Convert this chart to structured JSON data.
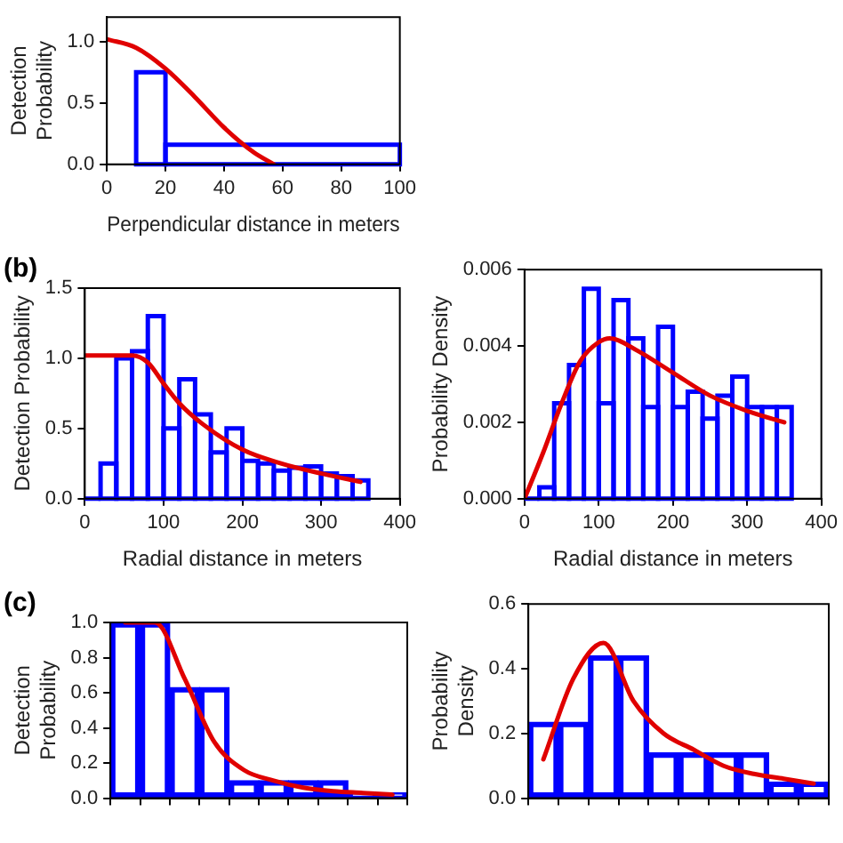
{
  "chart_data": [
    {
      "type": "histogram",
      "xlabel": "Perpendicular distance in meters",
      "ylabel": "Detection Probability",
      "bins": [
        10,
        20,
        100
      ],
      "values": [
        0.75,
        0.16
      ],
      "color": "#0000ff",
      "xlim": [
        0,
        100
      ],
      "xticks": [
        0,
        20,
        40,
        60,
        80,
        100
      ],
      "ylim": [
        0,
        1.2
      ],
      "yticks": [
        {
          "value": 0,
          "label": "0.0"
        },
        {
          "value": 0.5,
          "label": "0.5"
        },
        {
          "value": 1,
          "label": "1.0"
        }
      ],
      "grid": false,
      "series": [
        {
          "type": "line",
          "color": "#e00000",
          "x": [
            0,
            10,
            20,
            30,
            40,
            50,
            57
          ],
          "values": [
            1.02,
            0.95,
            0.78,
            0.55,
            0.3,
            0.1,
            0
          ]
        }
      ]
    },
    {
      "type": "histogram",
      "title": "(b)",
      "xlabel": "Radial distance in meters",
      "ylabel": "Detection Probability",
      "bins": [
        0,
        20,
        40,
        60,
        80,
        100,
        120,
        140,
        160,
        180,
        200,
        220,
        240,
        260,
        280,
        300,
        320,
        340,
        360
      ],
      "values": [
        0,
        0.25,
        1.0,
        1.05,
        1.3,
        0.5,
        0.85,
        0.6,
        0.33,
        0.5,
        0.27,
        0.25,
        0.2,
        0.22,
        0.23,
        0.18,
        0.16,
        0.13
      ],
      "color": "#0000ff",
      "xlim": [
        0,
        400
      ],
      "xticks": [
        0,
        100,
        200,
        300,
        400
      ],
      "ylim": [
        0,
        1.5
      ],
      "yticks": [
        {
          "value": 0,
          "label": "0.0"
        },
        {
          "value": 0.5,
          "label": "0.5"
        },
        {
          "value": 1,
          "label": "1.0"
        },
        {
          "value": 1.5,
          "label": "1.5"
        }
      ],
      "grid": false,
      "series": [
        {
          "type": "line",
          "color": "#e00000",
          "x": [
            0,
            60,
            80,
            100,
            120,
            150,
            200,
            250,
            300,
            350
          ],
          "values": [
            1.02,
            1.02,
            0.97,
            0.82,
            0.68,
            0.53,
            0.35,
            0.25,
            0.18,
            0.12
          ]
        }
      ]
    },
    {
      "type": "histogram",
      "xlabel": "Radial distance in meters",
      "ylabel": "Probability Density",
      "bins": [
        0,
        20,
        40,
        60,
        80,
        100,
        120,
        140,
        160,
        180,
        200,
        220,
        240,
        260,
        280,
        300,
        320,
        340,
        360
      ],
      "values": [
        0,
        0.0003,
        0.0025,
        0.0035,
        0.0055,
        0.0025,
        0.0052,
        0.0042,
        0.0024,
        0.0045,
        0.0024,
        0.0028,
        0.0021,
        0.0027,
        0.0032,
        0.0024,
        0.0024,
        0.0024
      ],
      "color": "#0000ff",
      "xlim": [
        0,
        400
      ],
      "xticks": [
        0,
        100,
        200,
        300,
        400
      ],
      "ylim": [
        0,
        0.006
      ],
      "yticks": [
        {
          "value": 0,
          "label": "0.000"
        },
        {
          "value": 0.002,
          "label": "0.002"
        },
        {
          "value": 0.004,
          "label": "0.004"
        },
        {
          "value": 0.006,
          "label": "0.006"
        }
      ],
      "grid": false,
      "series": [
        {
          "type": "line",
          "color": "#e00000",
          "x": [
            0,
            25,
            50,
            75,
            100,
            115,
            150,
            200,
            250,
            300,
            350
          ],
          "values": [
            0,
            0.0012,
            0.0025,
            0.0036,
            0.0041,
            0.0042,
            0.0039,
            0.0033,
            0.0027,
            0.0023,
            0.002
          ]
        }
      ]
    },
    {
      "type": "bar",
      "title": "(c)",
      "ylabel": "Detection Probability",
      "categories": [
        null,
        null,
        null,
        null,
        null,
        null,
        null,
        null,
        null,
        null
      ],
      "ylim": [
        0,
        1
      ],
      "yticks": [
        {
          "value": 0,
          "label": "0.0"
        },
        {
          "value": 0.2,
          "label": "0.2"
        },
        {
          "value": 0.4,
          "label": "0.4"
        },
        {
          "value": 0.6,
          "label": "0.6"
        },
        {
          "value": 0.8,
          "label": "0.8"
        },
        {
          "value": 1,
          "label": "1.0"
        }
      ],
      "grid": false,
      "series": [
        {
          "type": "bar",
          "color": "#0000ff",
          "values": [
            1.0,
            1.0,
            0.63,
            0.63,
            0.1,
            0.1,
            0.1,
            0.1,
            0.03,
            0.03
          ]
        },
        {
          "type": "line",
          "color": "#e00000",
          "values": [
            1,
            1,
            0.68,
            0.32,
            0.16,
            0.1,
            0.06,
            0.04,
            0.03,
            0.02
          ]
        }
      ]
    },
    {
      "type": "bar",
      "ylabel": "Probability Density",
      "categories": [
        null,
        null,
        null,
        null,
        null,
        null,
        null,
        null,
        null,
        null
      ],
      "ylim": [
        0,
        0.6
      ],
      "yticks": [
        {
          "value": 0,
          "label": "0.0"
        },
        {
          "value": 0.2,
          "label": "0.2"
        },
        {
          "value": 0.4,
          "label": "0.4"
        },
        {
          "value": 0.6,
          "label": "0.6"
        }
      ],
      "grid": false,
      "series": [
        {
          "type": "bar",
          "color": "#0000ff",
          "values": [
            0.235,
            0.235,
            0.44,
            0.44,
            0.14,
            0.14,
            0.14,
            0.14,
            0.05,
            0.05
          ]
        },
        {
          "type": "line",
          "color": "#e00000",
          "values": [
            0.12,
            0.37,
            0.48,
            0.3,
            0.2,
            0.15,
            0.1,
            0.075,
            0.06,
            0.045
          ]
        }
      ]
    }
  ]
}
